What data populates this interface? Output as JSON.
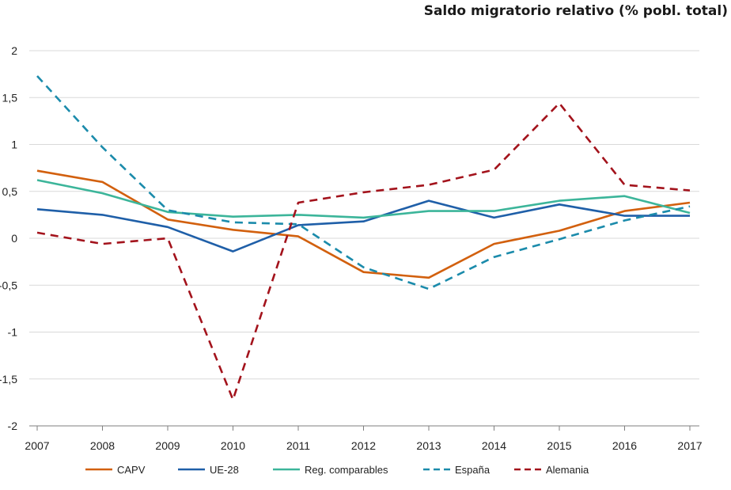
{
  "chart_data": {
    "type": "line",
    "title": "Saldo migratorio relativo (% pobl. total)",
    "xlabel": "",
    "ylabel": "",
    "x": [
      "2007",
      "2008",
      "2009",
      "2010",
      "2011",
      "2012",
      "2013",
      "2014",
      "2015",
      "2016",
      "2017"
    ],
    "ylim": [
      -2,
      2
    ],
    "yticks": [
      "2",
      "1,5",
      "1",
      "0,5",
      "0",
      "-0,5",
      "-1",
      "-1,5",
      "-2"
    ],
    "grid": true,
    "legend_position": "bottom",
    "series": [
      {
        "name": "CAPV",
        "color": "#d2600e",
        "dashed": false,
        "values": [
          0.72,
          0.6,
          0.2,
          0.09,
          0.02,
          -0.36,
          -0.42,
          -0.06,
          0.08,
          0.29,
          0.38
        ]
      },
      {
        "name": "UE-28",
        "color": "#1f5fa8",
        "dashed": false,
        "values": [
          0.31,
          0.25,
          0.12,
          -0.14,
          0.14,
          0.18,
          0.4,
          0.22,
          0.36,
          0.24,
          0.24
        ]
      },
      {
        "name": "Reg. comparables",
        "color": "#3cb59a",
        "dashed": false,
        "values": [
          0.62,
          0.48,
          0.28,
          0.23,
          0.25,
          0.22,
          0.29,
          0.29,
          0.4,
          0.45,
          0.27
        ]
      },
      {
        "name": "España",
        "color": "#1b8bab",
        "dashed": true,
        "values": [
          1.73,
          0.97,
          0.3,
          0.17,
          0.15,
          -0.31,
          -0.54,
          -0.2,
          -0.01,
          0.19,
          0.34
        ]
      },
      {
        "name": "Alemania",
        "color": "#a3131c",
        "dashed": true,
        "values": [
          0.06,
          -0.06,
          0.0,
          -1.72,
          0.38,
          0.49,
          0.57,
          0.73,
          1.44,
          0.57,
          0.51
        ]
      }
    ]
  }
}
